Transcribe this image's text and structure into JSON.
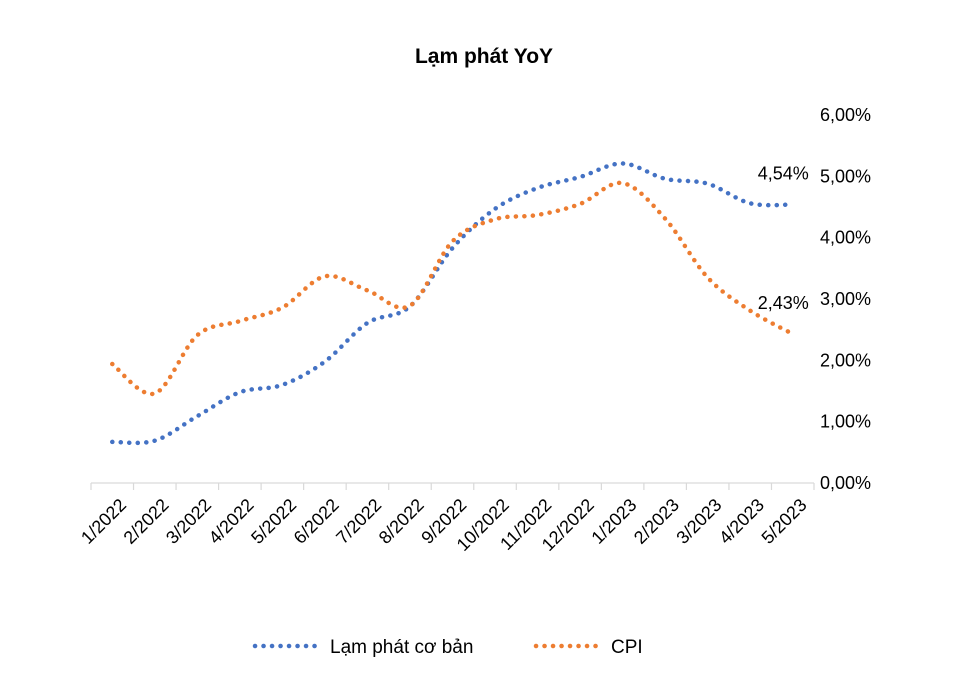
{
  "chart_data": {
    "type": "line",
    "title": "Lạm phát YoY",
    "xlabel": "",
    "ylabel": "",
    "categories": [
      "1/2022",
      "2/2022",
      "3/2022",
      "4/2022",
      "5/2022",
      "6/2022",
      "7/2022",
      "8/2022",
      "9/2022",
      "10/2022",
      "11/2022",
      "12/2022",
      "1/2023",
      "2/2023",
      "3/2023",
      "4/2023",
      "5/2023"
    ],
    "y_ticks": [
      "0,00%",
      "1,00%",
      "2,00%",
      "3,00%",
      "4,00%",
      "5,00%",
      "6,00%"
    ],
    "ylim": [
      0,
      6
    ],
    "y_axis_side": "right",
    "grid": false,
    "legend_position": "bottom",
    "series": [
      {
        "name": "Lạm phát cơ bản",
        "color": "#4472c4",
        "style": "dotted",
        "values": [
          0.67,
          0.69,
          1.09,
          1.48,
          1.6,
          1.98,
          2.61,
          2.88,
          3.83,
          4.47,
          4.81,
          4.99,
          5.21,
          4.96,
          4.88,
          4.56,
          4.54
        ],
        "end_label": "4,54%"
      },
      {
        "name": "CPI",
        "color": "#ed7d31",
        "style": "dotted",
        "values": [
          1.94,
          1.46,
          2.41,
          2.64,
          2.86,
          3.37,
          3.14,
          2.89,
          3.94,
          4.3,
          4.37,
          4.55,
          4.89,
          4.31,
          3.35,
          2.81,
          2.43
        ],
        "end_label": "2,43%"
      }
    ]
  }
}
